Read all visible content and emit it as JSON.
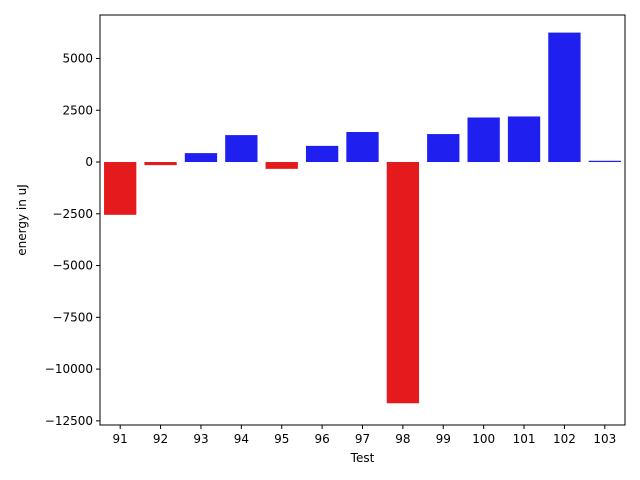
{
  "chart_data": {
    "type": "bar",
    "xlabel": "Test",
    "ylabel": "energy in uJ",
    "categories": [
      "91",
      "92",
      "93",
      "94",
      "95",
      "96",
      "97",
      "98",
      "99",
      "100",
      "101",
      "102",
      "103"
    ],
    "values": [
      -2550,
      -150,
      430,
      1300,
      -330,
      780,
      1450,
      -11650,
      1350,
      2150,
      2200,
      6250,
      60
    ],
    "bar_colors": [
      "#e41a1c",
      "#e41a1c",
      "#1f1ff0",
      "#1f1ff0",
      "#e41a1c",
      "#1f1ff0",
      "#1f1ff0",
      "#e41a1c",
      "#1f1ff0",
      "#1f1ff0",
      "#1f1ff0",
      "#1f1ff0",
      "#1f1ff0"
    ],
    "ylim": [
      -12700,
      7100
    ],
    "yticks": [
      5000,
      2500,
      0,
      -2500,
      -5000,
      -7500,
      -10000,
      -12500
    ],
    "ytick_labels": [
      "5000",
      "2500",
      "0",
      "−2500",
      "−5000",
      "−7500",
      "−10000",
      "−12500"
    ],
    "grid": false,
    "legend": "none"
  }
}
